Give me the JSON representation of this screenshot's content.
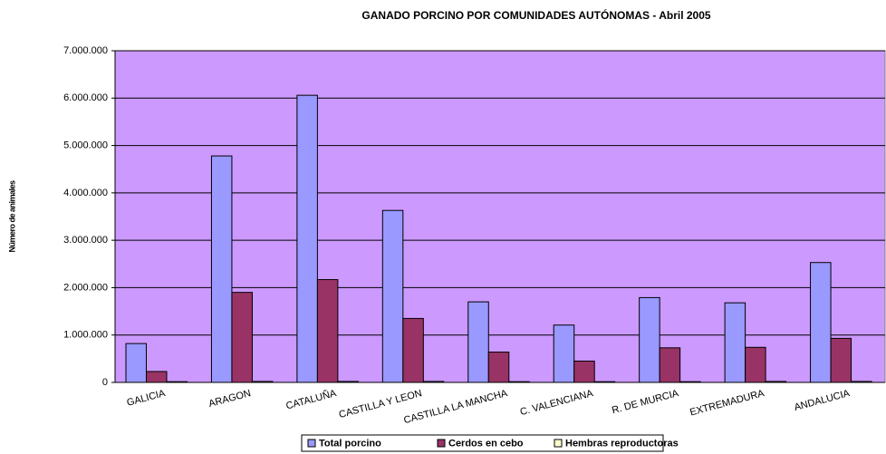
{
  "chart_data": {
    "type": "bar",
    "title": "GANADO PORCINO POR COMUNIDADES AUTÓNOMAS - Abril 2005",
    "y_label": "Número de animales",
    "categories": [
      "GALICIA",
      "ARAGON",
      "CATALUÑA",
      "CASTILLA Y LEON",
      "CASTILLA LA MANCHA",
      "C. VALENCIANA",
      "R. DE MURCIA",
      "EXTREMADURA",
      "ANDALUCIA"
    ],
    "series": [
      {
        "name": "Total porcino",
        "color": "#9999ff",
        "values": [
          820000,
          4780000,
          6060000,
          3630000,
          1700000,
          1210000,
          1790000,
          1680000,
          2530000
        ]
      },
      {
        "name": "Cerdos en cebo",
        "color": "#993366",
        "values": [
          230000,
          1900000,
          2170000,
          1350000,
          640000,
          450000,
          730000,
          740000,
          930000
        ]
      },
      {
        "name": "Hembras reproductoras",
        "color": "#ffffcc",
        "values": [
          15000,
          20000,
          20000,
          20000,
          15000,
          15000,
          15000,
          20000,
          20000
        ]
      }
    ],
    "ylim": [
      0,
      7000000
    ],
    "yticks": [
      0,
      {
        "value": 1000000,
        "label": "1.000.000"
      },
      {
        "value": 2000000,
        "label": "2.000.000"
      },
      {
        "value": 3000000,
        "label": "3.000.000"
      },
      {
        "value": 4000000,
        "label": "4.000.000"
      },
      {
        "value": 5000000,
        "label": "5.000.000"
      },
      {
        "value": 6000000,
        "label": "6.000.000"
      },
      {
        "value": 7000000,
        "label": "7.000.000"
      }
    ],
    "grid": true,
    "plot_background": "#cc99ff",
    "legend": "bottom"
  }
}
